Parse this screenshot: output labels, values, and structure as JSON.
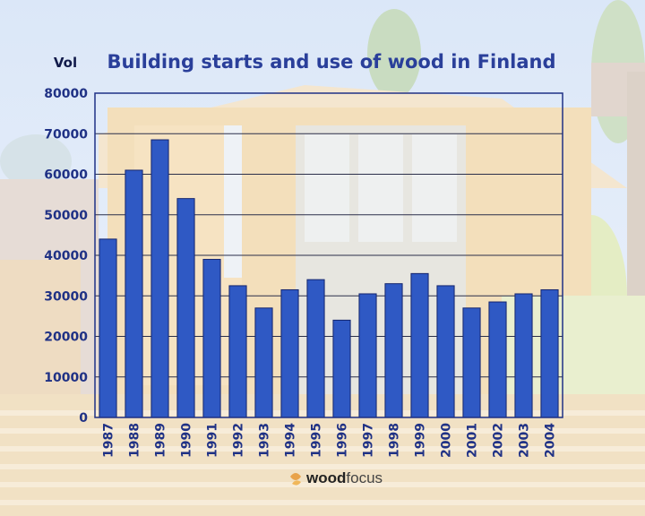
{
  "chart_data": {
    "type": "bar",
    "title": "Building starts and use of wood in Finland",
    "ylabel": "Vol",
    "xlabel": "",
    "categories": [
      "1987",
      "1988",
      "1989",
      "1990",
      "1991",
      "1992",
      "1993",
      "1994",
      "1995",
      "1996",
      "1997",
      "1998",
      "1999",
      "2000",
      "2001",
      "2002",
      "2003",
      "2004"
    ],
    "values": [
      44000,
      61000,
      68500,
      54000,
      39000,
      32500,
      27000,
      31500,
      34000,
      24000,
      30500,
      33000,
      35500,
      32500,
      27000,
      28500,
      30500,
      31500
    ],
    "ylim": [
      0,
      80000
    ],
    "yticks": [
      "0",
      "10000",
      "20000",
      "30000",
      "40000",
      "50000",
      "60000",
      "70000",
      "80000"
    ],
    "grid": true,
    "bar_color": "#2f59c4",
    "axis_color": "#1f3185"
  },
  "logo": {
    "text_prefix": "wood",
    "text_suffix": "focus"
  },
  "colors": {
    "title": "#2a3f9a",
    "sky": "#dce8f6",
    "wood": "#f0dfbf"
  }
}
